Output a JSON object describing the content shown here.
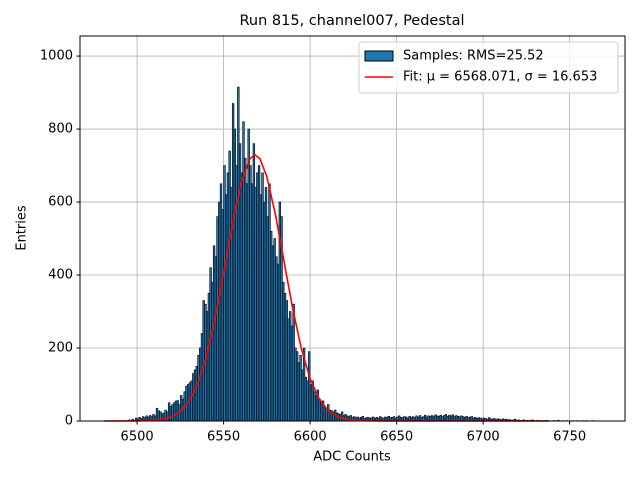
{
  "chart_data": {
    "type": "histogram",
    "title": "Run 815, channel007, Pedestal",
    "xlabel": "ADC Counts",
    "ylabel": "Entries",
    "xlim": [
      6467,
      6782
    ],
    "ylim": [
      0,
      1055
    ],
    "xticks": [
      6500,
      6550,
      6600,
      6650,
      6700,
      6750
    ],
    "yticks": [
      0,
      200,
      400,
      600,
      800,
      1000
    ],
    "grid": true,
    "legend": "upper right",
    "series": [
      {
        "type": "histogram",
        "name": "Samples: RMS=25.52",
        "color": "#1f77b4",
        "edgecolor": "#000000",
        "bins": [
          6495,
          6496,
          6497,
          6498,
          6499,
          6500,
          6501,
          6502,
          6503,
          6504,
          6505,
          6506,
          6507,
          6508,
          6509,
          6510,
          6511,
          6512,
          6513,
          6514,
          6515,
          6516,
          6517,
          6518,
          6519,
          6520,
          6521,
          6522,
          6523,
          6524,
          6525,
          6526,
          6527,
          6528,
          6529,
          6530,
          6531,
          6532,
          6533,
          6534,
          6535,
          6536,
          6537,
          6538,
          6539,
          6540,
          6541,
          6542,
          6543,
          6544,
          6545,
          6546,
          6547,
          6548,
          6549,
          6550,
          6551,
          6552,
          6553,
          6554,
          6555,
          6556,
          6557,
          6558,
          6559,
          6560,
          6561,
          6562,
          6563,
          6564,
          6565,
          6566,
          6567,
          6568,
          6569,
          6570,
          6571,
          6572,
          6573,
          6574,
          6575,
          6576,
          6577,
          6578,
          6579,
          6580,
          6581,
          6582,
          6583,
          6584,
          6585,
          6586,
          6587,
          6588,
          6589,
          6590,
          6591,
          6592,
          6593,
          6594,
          6595,
          6596,
          6597,
          6598,
          6599,
          6600,
          6601,
          6602,
          6603,
          6604,
          6605,
          6606,
          6607,
          6608,
          6609,
          6610,
          6611,
          6612,
          6613,
          6614,
          6615,
          6616,
          6617,
          6618,
          6619,
          6620,
          6621,
          6622,
          6623,
          6624,
          6625,
          6626,
          6627,
          6628,
          6629,
          6630,
          6631,
          6632,
          6633,
          6634,
          6635,
          6636,
          6637,
          6638,
          6639,
          6640,
          6641,
          6642,
          6643,
          6644,
          6645,
          6646,
          6647,
          6648,
          6649,
          6650,
          6651,
          6652,
          6653,
          6654,
          6655,
          6656,
          6657,
          6658,
          6659,
          6660,
          6661,
          6662,
          6663,
          6664,
          6665,
          6666,
          6667,
          6668,
          6669,
          6670,
          6671,
          6672,
          6673,
          6674,
          6675,
          6676,
          6677,
          6678,
          6679,
          6680,
          6681,
          6682,
          6683,
          6684,
          6685,
          6686,
          6687,
          6688,
          6689,
          6690,
          6691,
          6692,
          6693,
          6694,
          6695,
          6696,
          6697,
          6698,
          6699,
          6700,
          6701,
          6702,
          6703,
          6704,
          6705,
          6706,
          6707,
          6708,
          6709,
          6710,
          6711,
          6712,
          6713,
          6714,
          6715,
          6716,
          6717,
          6718,
          6719,
          6720,
          6721,
          6722,
          6723,
          6724,
          6725,
          6726,
          6727,
          6728,
          6729,
          6730,
          6731,
          6732,
          6733,
          6734,
          6735,
          6736,
          6737,
          6738,
          6739,
          6740,
          6741,
          6742,
          6743,
          6744,
          6745,
          6746,
          6747,
          6748,
          6749,
          6750,
          6751,
          6752,
          6753,
          6754,
          6755,
          6756,
          6757,
          6758,
          6759,
          6760,
          6761,
          6762,
          6763,
          6764,
          6765
        ],
        "values": [
          3,
          0,
          5,
          2,
          8,
          6,
          10,
          7,
          12,
          9,
          14,
          11,
          15,
          12,
          18,
          14,
          35,
          28,
          25,
          20,
          22,
          30,
          25,
          50,
          40,
          45,
          50,
          55,
          56,
          45,
          70,
          60,
          80,
          95,
          100,
          105,
          110,
          130,
          140,
          150,
          180,
          200,
          240,
          330,
          320,
          300,
          350,
          420,
          380,
          480,
          450,
          560,
          600,
          650,
          580,
          700,
          620,
          680,
          740,
          640,
          870,
          800,
          700,
          915,
          760,
          680,
          820,
          720,
          650,
          800,
          700,
          650,
          760,
          640,
          680,
          700,
          620,
          680,
          600,
          640,
          560,
          650,
          520,
          480,
          500,
          450,
          430,
          600,
          560,
          380,
          350,
          330,
          280,
          300,
          260,
          320,
          200,
          190,
          160,
          180,
          140,
          200,
          120,
          110,
          190,
          100,
          110,
          80,
          70,
          85,
          60,
          50,
          55,
          40,
          35,
          45,
          30,
          28,
          25,
          30,
          22,
          20,
          18,
          25,
          15,
          18,
          14,
          12,
          15,
          10,
          12,
          9,
          11,
          8,
          10,
          13,
          7,
          9,
          10,
          8,
          9,
          11,
          7,
          10,
          8,
          12,
          9,
          8,
          11,
          10,
          13,
          9,
          10,
          12,
          8,
          11,
          14,
          10,
          9,
          12,
          11,
          8,
          13,
          10,
          12,
          9,
          14,
          11,
          15,
          10,
          12,
          16,
          11,
          14,
          13,
          15,
          12,
          17,
          14,
          13,
          16,
          12,
          15,
          18,
          13,
          16,
          14,
          17,
          12,
          15,
          13,
          11,
          14,
          12,
          10,
          13,
          9,
          11,
          12,
          8,
          10,
          7,
          9,
          8,
          6,
          8,
          7,
          5,
          9,
          6,
          5,
          7,
          4,
          6,
          5,
          3,
          6,
          4,
          5,
          3,
          4,
          2,
          3,
          5,
          2,
          3,
          1,
          2,
          3,
          1,
          2,
          1,
          2,
          3,
          1,
          0,
          2,
          1,
          1,
          0,
          1,
          2,
          0,
          1,
          0,
          1,
          1,
          0,
          2,
          0,
          0,
          1,
          0,
          1,
          0,
          0,
          1,
          0,
          0,
          1,
          0,
          0,
          1,
          0,
          1,
          0,
          0,
          0,
          1,
          0
        ]
      },
      {
        "type": "line",
        "name": "Fit: μ = 6568.071, σ = 16.653",
        "color": "#ff0000",
        "x": [
          6481,
          6500,
          6510,
          6520,
          6525,
          6530,
          6535,
          6540,
          6545,
          6550,
          6555,
          6560,
          6565,
          6568,
          6571,
          6575,
          6580,
          6585,
          6590,
          6595,
          6600,
          6605,
          6610,
          6615,
          6620,
          6630,
          6640,
          6660,
          6700,
          6738
        ],
        "values": [
          0,
          0.2,
          1.7,
          11.3,
          25.8,
          53.5,
          101.6,
          176.5,
          279.8,
          405,
          536.6,
          649,
          717.7,
          730,
          718.8,
          669.4,
          564.8,
          435.4,
          306.7,
          197.5,
          116.1,
          62.4,
          30.7,
          13.8,
          5.6,
          0.7,
          0.1,
          0,
          0,
          0
        ]
      }
    ]
  }
}
